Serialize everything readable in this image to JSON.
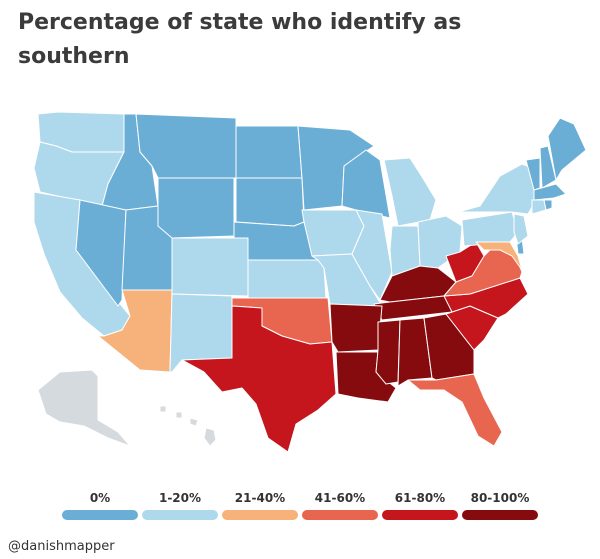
{
  "title": "Percentage of state who identify as southern",
  "credit": "@danishmapper",
  "colors": {
    "c0": "#6aaed6",
    "c1": "#aed8ec",
    "c2": "#f6b27a",
    "c3": "#e8654f",
    "c4": "#c4161c",
    "c5": "#860b0e",
    "none": "#d5dade",
    "border": "#ffffff"
  },
  "legend": [
    {
      "label": "0%",
      "color": "#6aaed6"
    },
    {
      "label": "1-20%",
      "color": "#aed8ec"
    },
    {
      "label": "21-40%",
      "color": "#f6b27a"
    },
    {
      "label": "41-60%",
      "color": "#e8654f"
    },
    {
      "label": "61-80%",
      "color": "#c4161c"
    },
    {
      "label": "80-100%",
      "color": "#860b0e"
    }
  ],
  "regions": {
    "c0": [
      "Washington",
      "Oregon",
      "Idaho",
      "Montana",
      "Nevada",
      "Utah",
      "Wyoming",
      "North Dakota",
      "South Dakota",
      "Nebraska",
      "Minnesota",
      "Wisconsin",
      "Vermont",
      "New Hampshire",
      "Maine",
      "Massachusetts",
      "Rhode Island",
      "Delaware"
    ],
    "c1": [
      "California",
      "Colorado",
      "New Mexico",
      "Kansas",
      "Iowa",
      "Missouri",
      "Illinois",
      "Indiana",
      "Ohio",
      "Michigan",
      "Pennsylvania",
      "New York",
      "New Jersey",
      "Connecticut"
    ],
    "c2": [
      "Arizona",
      "Maryland"
    ],
    "c3": [
      "Oklahoma",
      "Virginia",
      "Florida"
    ],
    "c4": [
      "Texas",
      "North Carolina",
      "South Carolina",
      "West Virginia"
    ],
    "c5": [
      "Arkansas",
      "Louisiana",
      "Mississippi",
      "Alabama",
      "Georgia",
      "Tennessee",
      "Kentucky"
    ],
    "none": [
      "Alaska",
      "Hawaii"
    ]
  }
}
